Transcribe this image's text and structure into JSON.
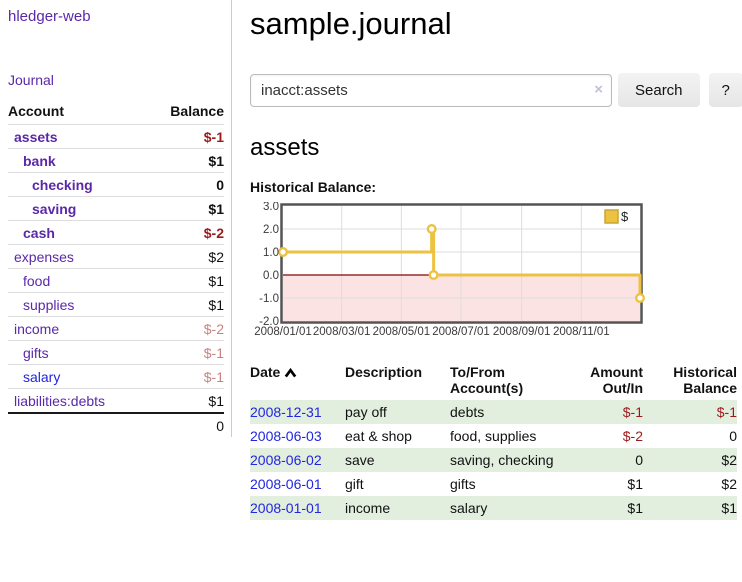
{
  "app": {
    "brand": "hledger-web"
  },
  "sidebar": {
    "nav": {
      "journal": "Journal"
    },
    "columns": {
      "account": "Account",
      "balance": "Balance"
    },
    "accounts": [
      {
        "name": "assets",
        "depth": 1,
        "bold": true,
        "balance": "$-1",
        "balance_style": "neg-strong",
        "link_color": "purple"
      },
      {
        "name": "bank",
        "depth": 2,
        "bold": true,
        "balance": "$1",
        "balance_style": "pos",
        "link_color": "purple"
      },
      {
        "name": "checking",
        "depth": 3,
        "bold": true,
        "balance": "0",
        "balance_style": "pos",
        "link_color": "purple"
      },
      {
        "name": "saving",
        "depth": 3,
        "bold": true,
        "balance": "$1",
        "balance_style": "pos",
        "link_color": "purple"
      },
      {
        "name": "cash",
        "depth": 2,
        "bold": true,
        "balance": "$-2",
        "balance_style": "neg-strong",
        "link_color": "purple"
      },
      {
        "name": "expenses",
        "depth": 1,
        "bold": false,
        "balance": "$2",
        "balance_style": "pos",
        "link_color": "purple"
      },
      {
        "name": "food",
        "depth": 2,
        "bold": false,
        "balance": "$1",
        "balance_style": "pos",
        "link_color": "purple"
      },
      {
        "name": "supplies",
        "depth": 2,
        "bold": false,
        "balance": "$1",
        "balance_style": "pos",
        "link_color": "purple"
      },
      {
        "name": "income",
        "depth": 1,
        "bold": false,
        "balance": "$-2",
        "balance_style": "neg-soft",
        "link_color": "purple"
      },
      {
        "name": "gifts",
        "depth": 2,
        "bold": false,
        "balance": "$-1",
        "balance_style": "neg-soft",
        "link_color": "purple"
      },
      {
        "name": "salary",
        "depth": 2,
        "bold": false,
        "balance": "$-1",
        "balance_style": "neg-soft",
        "link_color": "blue"
      },
      {
        "name": "liabilities:debts",
        "depth": 1,
        "bold": false,
        "balance": "$1",
        "balance_style": "pos",
        "link_color": "purple"
      }
    ],
    "total": "0"
  },
  "header": {
    "title": "sample.journal"
  },
  "search": {
    "value": "inacct:assets",
    "clear_icon": "×",
    "button_label": "Search",
    "help_label": "?"
  },
  "register": {
    "heading": "assets",
    "chart_title": "Historical Balance:"
  },
  "chart_data": {
    "type": "line",
    "subtype": "step",
    "title": "Historical Balance",
    "series": [
      {
        "name": "$",
        "color": "#EDC240",
        "points": [
          [
            "2008-01-01",
            1
          ],
          [
            "2008-06-01",
            2
          ],
          [
            "2008-06-03",
            0
          ],
          [
            "2008-12-31",
            -1
          ]
        ]
      }
    ],
    "ylim": [
      -2,
      3
    ],
    "yticks": [
      "3.0",
      "2.0",
      "1.0",
      "0.0",
      "-1.0",
      "-2.0"
    ],
    "xticks": [
      "2008/01/01",
      "2008/03/01",
      "2008/05/01",
      "2008/07/01",
      "2008/09/01",
      "2008/11/01"
    ],
    "x_range": [
      "2008-01-01",
      "2008-12-31"
    ],
    "grid": true,
    "legend_position": "top-right",
    "legend_label": "$",
    "colors": {
      "line": "#EDC240",
      "marker_fill": "#ffffff",
      "negative_region": "#fbe3e3",
      "zero_line": "#8b0000",
      "gridline": "#dddddd",
      "plot_border": "#545454",
      "tick_text": "#3a3a3a"
    }
  },
  "table": {
    "headers": {
      "date": "Date",
      "description": "Description",
      "accounts": "To/From Account(s)",
      "amount": "Amount Out/In",
      "balance": "Historical Balance"
    },
    "sort": {
      "column": "date",
      "direction": "asc",
      "icon": "chevron-up"
    },
    "rows": [
      {
        "date": "2008-12-31",
        "description": "pay off",
        "accounts": "debts",
        "amount": "$-1",
        "amount_neg": true,
        "balance": "$-1",
        "balance_neg": true,
        "stripe": true
      },
      {
        "date": "2008-06-03",
        "description": "eat & shop",
        "accounts": "food, supplies",
        "amount": "$-2",
        "amount_neg": true,
        "balance": "0",
        "balance_neg": false,
        "stripe": false
      },
      {
        "date": "2008-06-02",
        "description": "save",
        "accounts": "saving, checking",
        "amount": "0",
        "amount_neg": false,
        "balance": "$2",
        "balance_neg": false,
        "stripe": true
      },
      {
        "date": "2008-06-01",
        "description": "gift",
        "accounts": "gifts",
        "amount": "$1",
        "amount_neg": false,
        "balance": "$2",
        "balance_neg": false,
        "stripe": false
      },
      {
        "date": "2008-01-01",
        "description": "income",
        "accounts": "salary",
        "amount": "$1",
        "amount_neg": false,
        "balance": "$1",
        "balance_neg": false,
        "stripe": true
      }
    ]
  }
}
